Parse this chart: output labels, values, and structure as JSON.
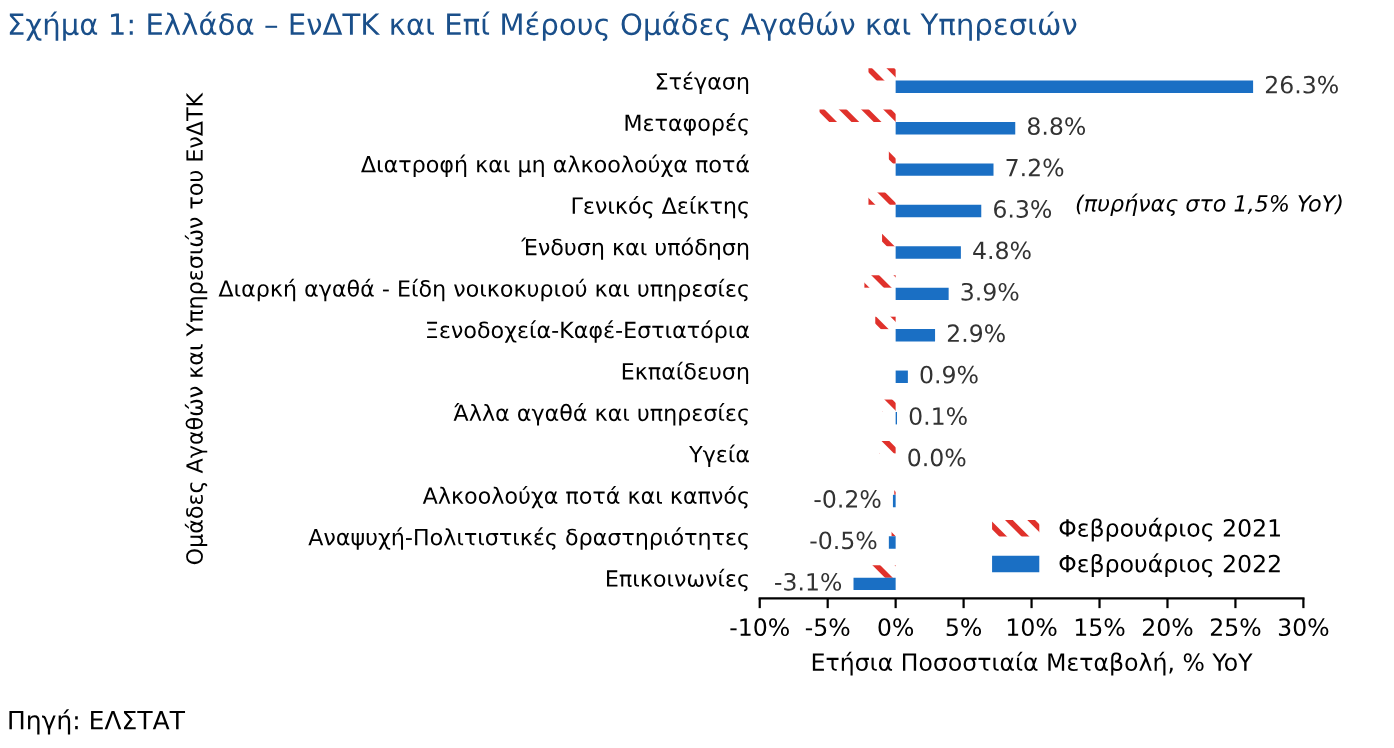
{
  "chart_data": {
    "type": "bar",
    "orientation": "horizontal",
    "title": "Σχήμα 1: Ελλάδα – ΕνΔΤΚ και Επί Μέρους Ομάδες Αγαθών και Υπηρεσιών",
    "xlabel": "Ετήσια Ποσοστιαία Μεταβολή, % YoY",
    "ylabel": "Ομάδες Αγαθών και Υπηρεσιών του ΕνΔΤΚ",
    "categories": [
      "Στέγαση",
      "Μεταφορές",
      "Διατροφή και μη αλκοολούχα ποτά",
      "Γενικός Δείκτης",
      "Ένδυση και υπόδηση",
      "Διαρκή αγαθά - Είδη νοικοκυριού και υπηρεσίες",
      "Ξενοδοχεία-Καφέ-Εστιατόρια",
      "Εκπαίδευση",
      "Άλλα αγαθά και υπηρεσίες",
      "Υγεία",
      "Αλκοολούχα ποτά και καπνός",
      "Αναψυχή-Πολιτιστικές δραστηριότητες",
      "Επικοινωνίες"
    ],
    "series": [
      {
        "name": "Φεβρουάριος 2021",
        "color": "#e0312b",
        "values": [
          -2.0,
          -5.6,
          -0.5,
          -2.0,
          -1.0,
          -2.3,
          -1.5,
          0,
          -1.0,
          -1.2,
          -0.1,
          -0.3,
          -1.8
        ]
      },
      {
        "name": "Φεβρουάριος 2022",
        "color": "#1a6fc4",
        "values": [
          26.3,
          8.8,
          7.2,
          6.3,
          4.8,
          3.9,
          2.9,
          0.9,
          0.1,
          0.0,
          -0.2,
          -0.5,
          -3.1
        ],
        "value_labels": [
          "26.3%",
          "8.8%",
          "7.2%",
          "6.3%",
          "4.8%",
          "3.9%",
          "2.9%",
          "0.9%",
          "0.1%",
          "0.0%",
          "-0.2%",
          "-0.5%",
          "-3.1%"
        ]
      }
    ],
    "xlim": [
      -10,
      30
    ],
    "xticks": [
      {
        "value": -10,
        "label": "-10%"
      },
      {
        "value": -5,
        "label": "-5%"
      },
      {
        "value": 0,
        "label": "0%"
      },
      {
        "value": 5,
        "label": "5%"
      },
      {
        "value": 10,
        "label": "10%"
      },
      {
        "value": 15,
        "label": "15%"
      },
      {
        "value": 20,
        "label": "20%"
      },
      {
        "value": 25,
        "label": "25%"
      },
      {
        "value": 30,
        "label": "30%"
      }
    ],
    "annotations": [
      "(πυρήνας στο 1,5% YoY)",
      "Πηγή: ΕΛΣΤΑΤ"
    ],
    "legend": "bottom right",
    "grid": false
  }
}
